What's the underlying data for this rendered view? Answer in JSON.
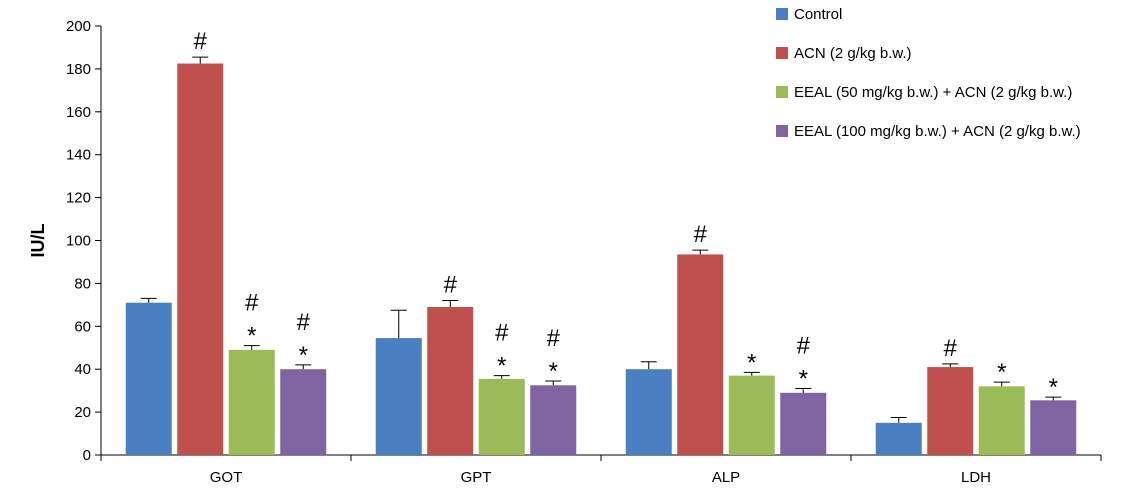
{
  "chart_data": {
    "type": "bar",
    "title": "",
    "xlabel": "",
    "ylabel": "IU/L",
    "ylim": [
      0,
      200
    ],
    "yticks": [
      0,
      20,
      40,
      60,
      80,
      100,
      120,
      140,
      160,
      180,
      200
    ],
    "categories": [
      "GOT",
      "GPT",
      "ALP",
      "LDH"
    ],
    "legend_position": "top-right",
    "grid": false,
    "series": [
      {
        "name": "Control",
        "color": "#4a7fc1",
        "values": [
          71,
          54.5,
          40,
          15
        ],
        "errors": [
          2,
          13,
          3.5,
          2.5
        ],
        "annotations": [
          "",
          "",
          "",
          ""
        ]
      },
      {
        "name": "ACN (2 g/kg b.w.)",
        "color": "#c0504d",
        "values": [
          182.5,
          69,
          93.5,
          41
        ],
        "errors": [
          3,
          3,
          2,
          1.5
        ],
        "annotations": [
          "#",
          "#",
          "#",
          "#"
        ]
      },
      {
        "name": "EEAL (50 mg/kg b.w.) + ACN (2 g/kg b.w.)",
        "color": "#9bbb59",
        "values": [
          49,
          35.5,
          37,
          32
        ],
        "errors": [
          2,
          1.5,
          1.5,
          2
        ],
        "annotations": [
          "#\n*",
          "#\n*",
          "*",
          "*"
        ]
      },
      {
        "name": "EEAL (100 mg/kg b.w.) + ACN (2 g/kg b.w.)",
        "color": "#8064a2",
        "values": [
          40,
          32.5,
          29,
          25.5
        ],
        "errors": [
          2,
          2,
          2,
          1.5
        ],
        "annotations": [
          "#\n*",
          "#\n*",
          "#\n*",
          "*"
        ]
      }
    ]
  }
}
